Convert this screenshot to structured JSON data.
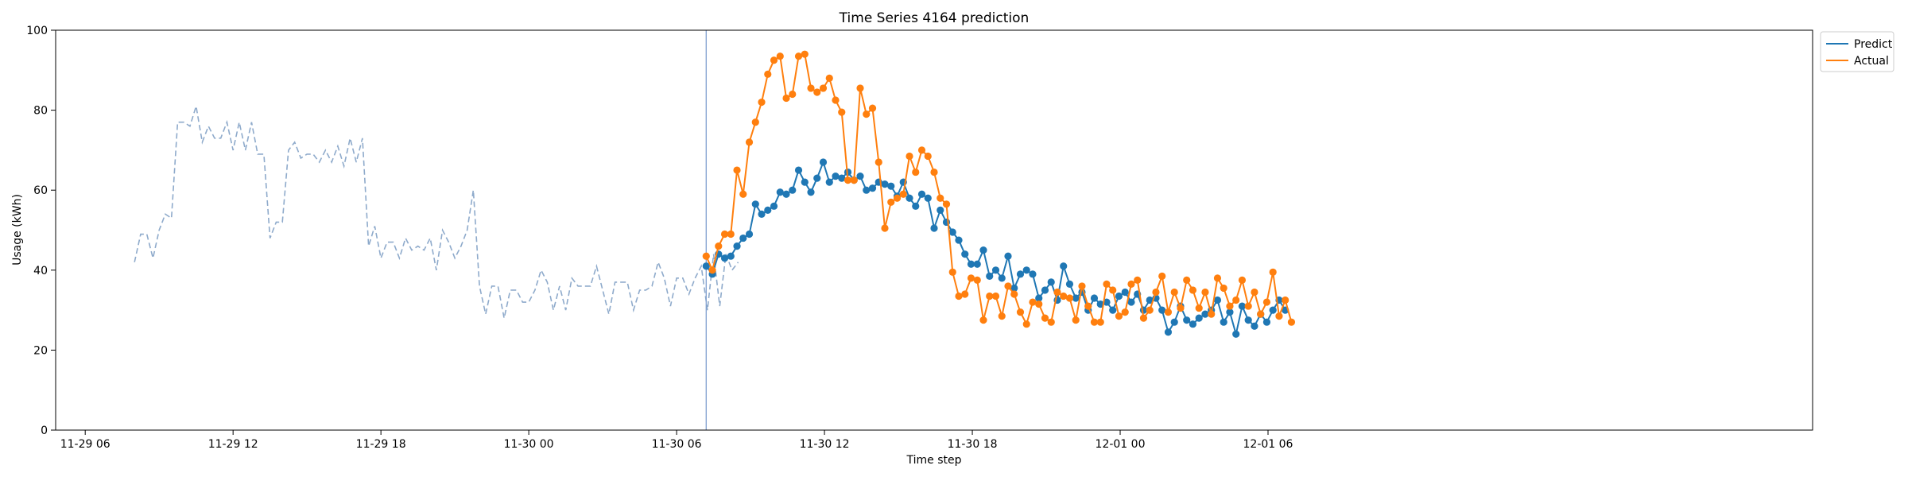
{
  "chart_data": {
    "type": "line",
    "title": "Time Series 4164 prediction",
    "xlabel": "Time step",
    "ylabel": "Usage (kWh)",
    "ylim": [
      0,
      100
    ],
    "yticks": [
      "0",
      "20",
      "40",
      "60",
      "80",
      "100"
    ],
    "xlim_hours": [
      4.8,
      76.1
    ],
    "xticks": [
      {
        "label": "11-29 06",
        "hour": 6
      },
      {
        "label": "11-29 12",
        "hour": 12
      },
      {
        "label": "11-29 18",
        "hour": 18
      },
      {
        "label": "11-30 00",
        "hour": 24
      },
      {
        "label": "11-30 06",
        "hour": 30
      },
      {
        "label": "11-30 12",
        "hour": 36
      },
      {
        "label": "11-30 18",
        "hour": 42
      },
      {
        "label": "12-01 00",
        "hour": 48
      },
      {
        "label": "12-01 06",
        "hour": 54
      }
    ],
    "x_start_hour": 8.0,
    "step_hours": 0.25,
    "split_hour": 31.2,
    "legend_position": "top-right",
    "history": {
      "start_hour": 8.0,
      "values": [
        42,
        49,
        49,
        43,
        50,
        54,
        53,
        77,
        77,
        76,
        81,
        72,
        76,
        73,
        73,
        77,
        70,
        77,
        70,
        77,
        69,
        69,
        48,
        52,
        52,
        70,
        72,
        68,
        69,
        69,
        67,
        70,
        67,
        71,
        66,
        73,
        67,
        73,
        46,
        51,
        43,
        47,
        47,
        43,
        48,
        45,
        46,
        45,
        48,
        40,
        50,
        47,
        43,
        46,
        50,
        60,
        36,
        29,
        36,
        36,
        28,
        35,
        35,
        32,
        32,
        35,
        40,
        37,
        30,
        36,
        30,
        38,
        36,
        36,
        36,
        41,
        35,
        29,
        37,
        37,
        37,
        30,
        35,
        35,
        36,
        42,
        38,
        31,
        38,
        38,
        34,
        38,
        41,
        30,
        44,
        31,
        44,
        40,
        42
      ]
    },
    "series": [
      {
        "name": "Predict",
        "color": "#1f77b4",
        "start_hour": 31.2,
        "values": [
          41,
          39,
          44,
          43,
          43.5,
          46,
          48,
          49,
          56.5,
          54,
          55,
          56,
          59.5,
          59,
          60,
          65,
          62,
          59.5,
          63,
          67,
          62,
          63.5,
          63,
          64.5,
          62.5,
          63.5,
          60,
          60.5,
          62,
          61.5,
          61,
          58.5,
          62,
          58,
          56,
          59,
          58,
          50.5,
          55,
          52,
          49.5,
          47.5,
          44,
          41.5,
          41.5,
          45,
          38.5,
          40,
          38,
          43.5,
          35.5,
          39,
          40,
          39,
          33,
          35,
          37,
          32.5,
          41,
          36.5,
          33,
          34.5,
          30,
          33,
          31.5,
          32,
          30,
          33.5,
          34.5,
          32,
          34,
          30,
          32.5,
          33,
          30,
          24.5,
          27,
          31,
          27.5,
          26.5,
          28,
          29,
          30,
          32.5,
          27,
          29.5,
          24,
          31,
          27.5,
          26,
          29,
          27,
          30,
          32.5,
          30
        ]
      },
      {
        "name": "Actual",
        "color": "#ff7f0e",
        "start_hour": 31.2,
        "values": [
          43.5,
          40,
          46,
          49,
          49,
          65,
          59,
          72,
          77,
          82,
          89,
          92.5,
          93.5,
          83,
          84,
          93.5,
          94,
          85.5,
          84.5,
          85.5,
          88,
          82.5,
          79.5,
          62.5,
          62.5,
          85.5,
          79,
          80.5,
          67,
          50.5,
          57,
          58,
          59,
          68.5,
          64.5,
          70,
          68.5,
          64.5,
          58,
          56.5,
          39.5,
          33.5,
          34,
          38,
          37.5,
          27.5,
          33.5,
          33.5,
          28.5,
          36,
          34,
          29.5,
          26.5,
          32,
          31.5,
          28,
          27,
          34.5,
          33.5,
          33,
          27.5,
          36,
          31,
          27,
          27,
          36.5,
          35,
          28.5,
          29.5,
          36.5,
          37.5,
          28,
          30,
          34.5,
          38.5,
          29.5,
          34.5,
          30.5,
          37.5,
          35,
          30.5,
          34.5,
          29,
          38,
          35.5,
          31,
          32.5,
          37.5,
          31,
          34.5,
          29,
          32,
          39.5,
          28.5,
          32.5,
          27
        ]
      }
    ]
  }
}
